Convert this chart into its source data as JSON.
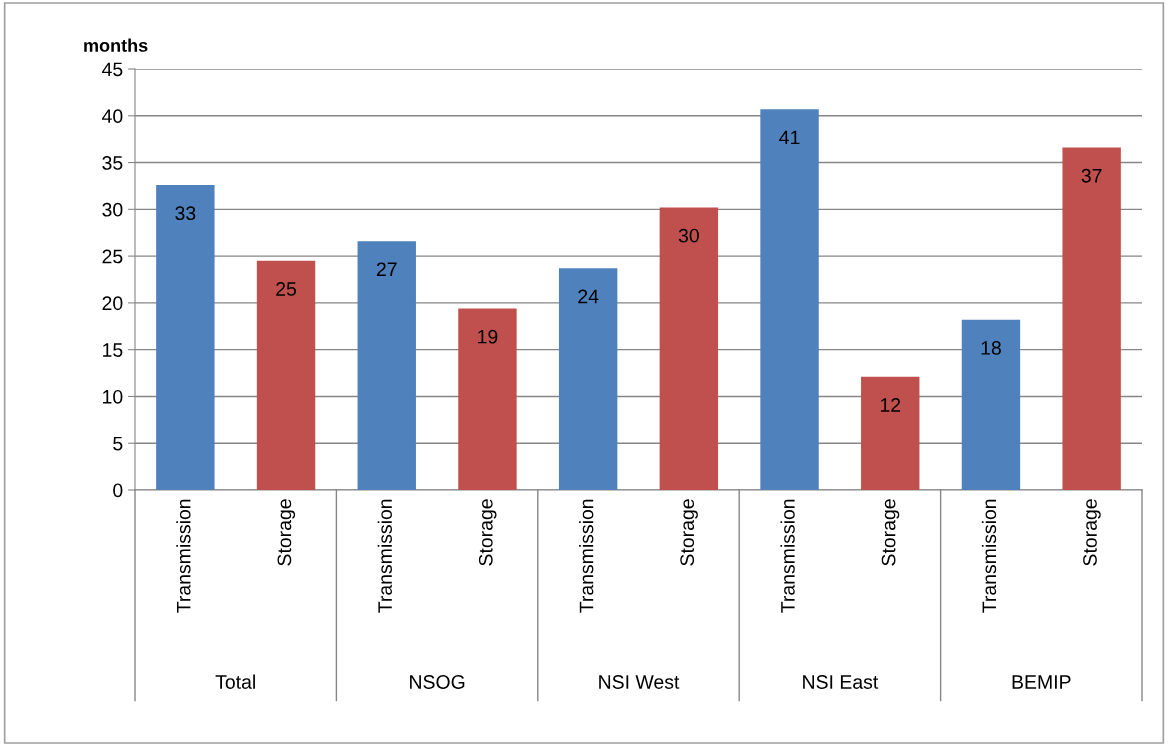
{
  "chart_data": {
    "type": "bar",
    "ylabel": "months",
    "categories": [
      "Transmission",
      "Storage",
      "Transmission",
      "Storage",
      "Transmission",
      "Storage",
      "Transmission",
      "Storage",
      "Transmission",
      "Storage"
    ],
    "values": [
      32.6,
      24.5,
      26.6,
      19.4,
      23.7,
      30.2,
      40.7,
      12.1,
      18.2,
      36.6
    ],
    "value_labels": [
      "33",
      "25",
      "27",
      "19",
      "24",
      "30",
      "41",
      "12",
      "18",
      "37"
    ],
    "colors": [
      "#4f81bd",
      "#c0504d",
      "#4f81bd",
      "#c0504d",
      "#4f81bd",
      "#c0504d",
      "#4f81bd",
      "#c0504d",
      "#4f81bd",
      "#c0504d"
    ],
    "annotations": [
      "Total",
      "NSOG",
      "NSI West",
      "NSI East",
      "BEMIP"
    ],
    "ylim": [
      0,
      45
    ],
    "yticks": [
      0,
      5,
      10,
      15,
      20,
      25,
      30,
      35,
      40,
      45
    ],
    "grid": "y"
  }
}
